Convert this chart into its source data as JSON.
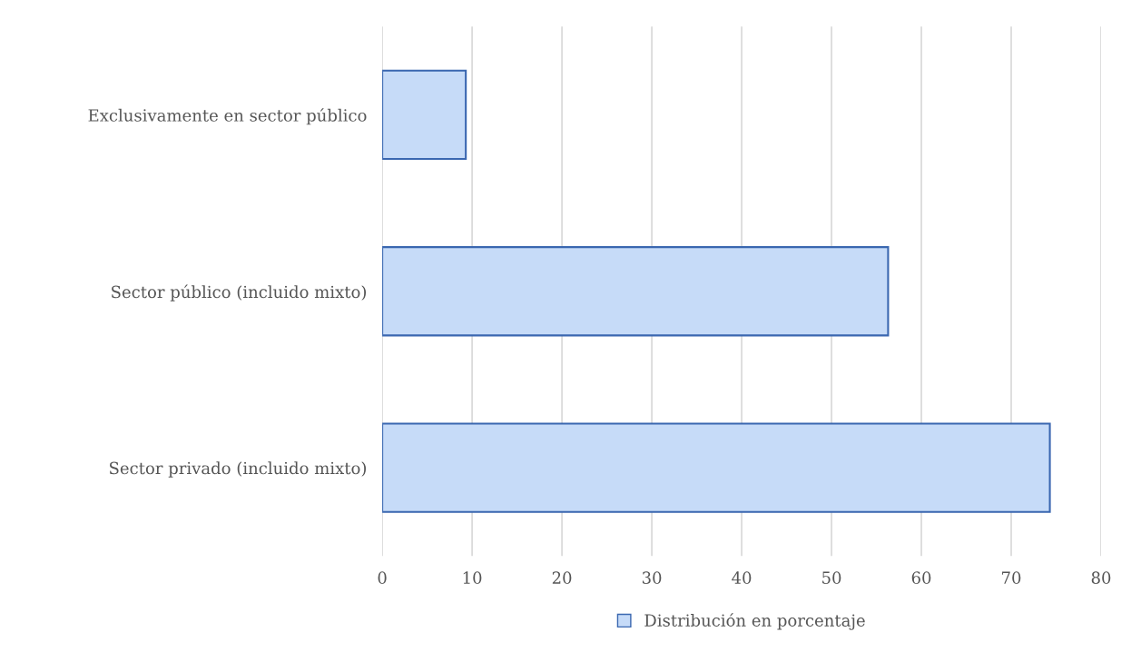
{
  "chart_data": {
    "type": "bar",
    "orientation": "horizontal",
    "categories": [
      "Exclusivamente en sector público",
      "Sector público (incluido mixto)",
      "Sector privado (incluido mixto)"
    ],
    "series": [
      {
        "name": "Distribución en porcentaje",
        "color": "#c6dbf8",
        "values": [
          9.3,
          56.3,
          74.3
        ]
      }
    ],
    "xlim": [
      0,
      80
    ],
    "xticks": [
      0,
      10,
      20,
      30,
      40,
      50,
      60,
      70,
      80
    ],
    "grid": "x",
    "legend": "bottom"
  }
}
